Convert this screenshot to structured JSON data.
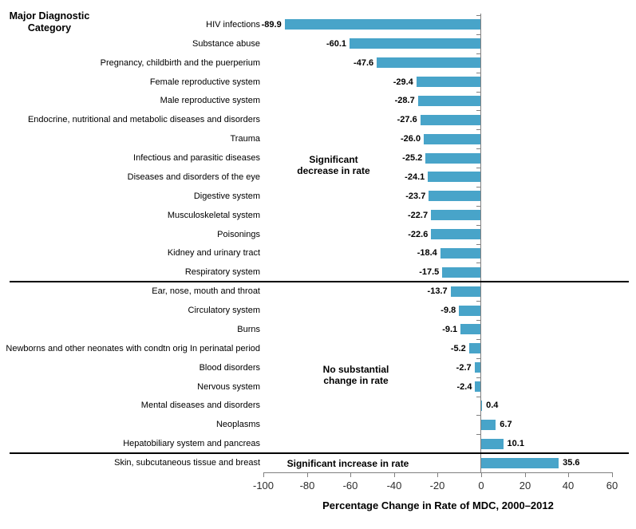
{
  "chart_data": {
    "type": "bar",
    "orientation": "horizontal",
    "title": "Major Diagnostic Category",
    "xlabel": "Percentage Change in Rate of MDC, 2000–2012",
    "xlim": [
      -100,
      60
    ],
    "x_ticks": [
      -100,
      -80,
      -60,
      -40,
      -20,
      0,
      20,
      40,
      60
    ],
    "grid": false,
    "legend": false,
    "bar_color": "#48A4C9",
    "axis_color": "#808080",
    "divider_color": "#000000",
    "categories": [
      "HIV infections",
      "Substance abuse",
      "Pregnancy, childbirth and the puerperium",
      "Female reproductive system",
      "Male reproductive system",
      "Endocrine, nutritional and metabolic diseases and disorders",
      "Trauma",
      "Infectious and parasitic diseases",
      "Diseases and disorders of the eye",
      "Digestive system",
      "Musculoskeletal system",
      "Poisonings",
      "Kidney and urinary tract",
      "Respiratory system",
      "Ear, nose, mouth and throat",
      "Circulatory system",
      "Burns",
      "Newborns and other neonates with condtn orig In perinatal period",
      "Blood disorders",
      "Nervous system",
      "Mental diseases and disorders",
      "Neoplasms",
      "Hepatobiliary system and pancreas",
      "Skin, subcutaneous tissue and breast"
    ],
    "values": [
      -89.9,
      -60.1,
      -47.6,
      -29.4,
      -28.7,
      -27.6,
      -26.0,
      -25.2,
      -24.1,
      -23.7,
      -22.7,
      -22.6,
      -18.4,
      -17.5,
      -13.7,
      -9.8,
      -9.1,
      -5.2,
      -2.7,
      -2.4,
      0.4,
      6.7,
      10.1,
      35.6
    ],
    "value_labels": [
      "-89.9",
      "-60.1",
      "-47.6",
      "-29.4",
      "-28.7",
      "-27.6",
      "-26.0",
      "-25.2",
      "-24.1",
      "-23.7",
      "-22.7",
      "-22.6",
      "-18.4",
      "-17.5",
      "-13.7",
      "-9.8",
      "-9.1",
      "-5.2",
      "-2.7",
      "-2.4",
      "0.4",
      "6.7",
      "10.1",
      "35.6"
    ],
    "groups": [
      {
        "annotation_lines": [
          "Significant",
          "decrease in rate"
        ],
        "first_row": 0,
        "last_row": 13
      },
      {
        "annotation_lines": [
          "No substantial",
          "change in rate"
        ],
        "first_row": 14,
        "last_row": 22
      },
      {
        "annotation_lines": [
          "Significant increase in rate"
        ],
        "first_row": 23,
        "last_row": 23
      }
    ]
  }
}
